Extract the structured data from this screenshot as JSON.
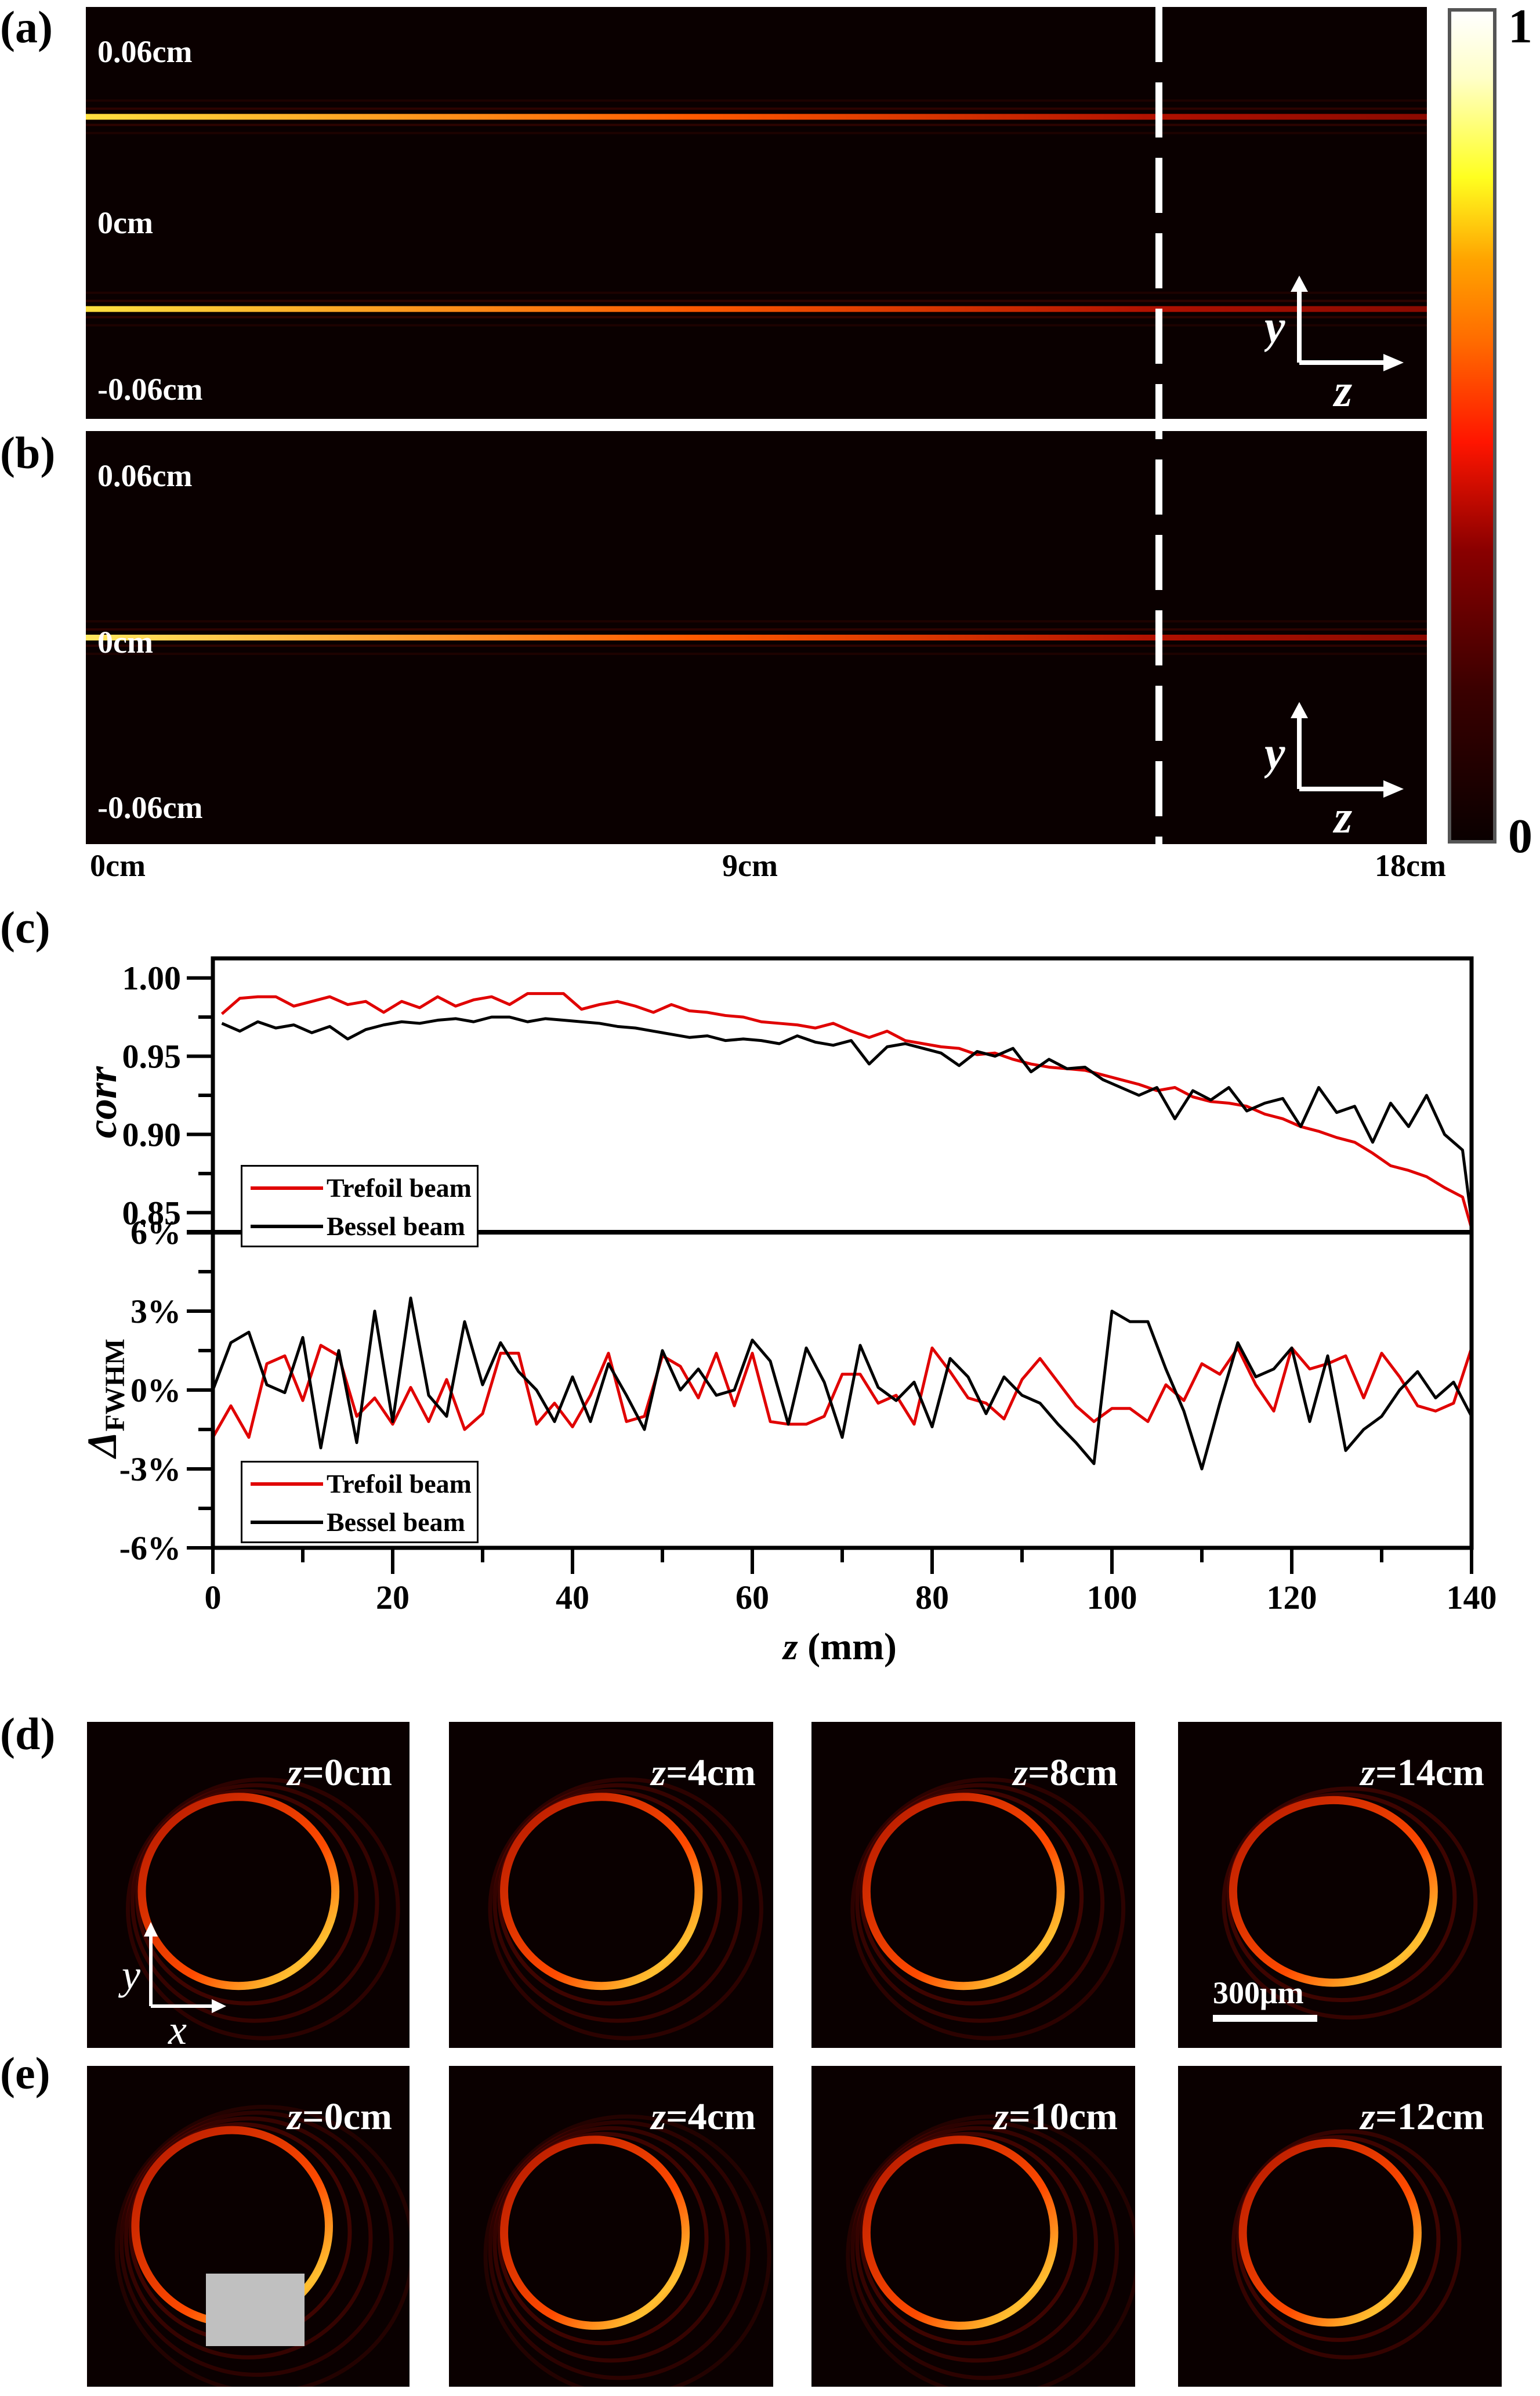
{
  "panel_labels": {
    "a": "(a)",
    "b": "(b)",
    "c": "(c)",
    "d": "(d)",
    "e": "(e)"
  },
  "heatmaps": {
    "y_ticks": [
      "0.06cm",
      "0cm",
      "-0.06cm"
    ],
    "x_ticks": [
      "0cm",
      "9cm",
      "18cm"
    ],
    "axis_y": "y",
    "axis_z": "z",
    "dashed_marker_z_cm": 14.4,
    "a": {
      "description": "Trefoil beam y-z intensity",
      "lobes_y_cm": [
        0.035,
        -0.035
      ]
    },
    "b": {
      "description": "Bessel beam y-z intensity",
      "lobes_y_cm": [
        0.0
      ]
    }
  },
  "colorbar": {
    "max_label": "1",
    "min_label": "0",
    "stops": [
      "#0a0000",
      "#3a0000",
      "#8a0000",
      "#ff1500",
      "#ff6a00",
      "#ffa300",
      "#ffff20",
      "#ffffc8",
      "#ffffff"
    ]
  },
  "colors": {
    "trefoil": "#e00000",
    "bessel": "#000000",
    "heat_bg": "#0a0000"
  },
  "chart_data": [
    {
      "type": "line",
      "title": "",
      "xlabel": "z (mm)",
      "ylabel": "corr",
      "xlim": [
        0,
        140
      ],
      "ylim": [
        0.8375,
        1.0125
      ],
      "yticks": [
        0.85,
        0.9,
        0.95,
        1.0
      ],
      "ytick_labels": [
        "0.85",
        "0.90",
        "0.95",
        "1.00"
      ],
      "grid": false,
      "legend": "bottom-left",
      "x": [
        1,
        3,
        5,
        7,
        9,
        11,
        13,
        15,
        17,
        19,
        21,
        23,
        25,
        27,
        29,
        31,
        33,
        35,
        37,
        39,
        41,
        43,
        45,
        47,
        49,
        51,
        53,
        55,
        57,
        59,
        61,
        63,
        65,
        67,
        69,
        71,
        73,
        75,
        77,
        79,
        81,
        83,
        85,
        87,
        89,
        91,
        93,
        95,
        97,
        99,
        101,
        103,
        105,
        107,
        109,
        111,
        113,
        115,
        117,
        119,
        121,
        123,
        125,
        127,
        129,
        131,
        133,
        135,
        137,
        139,
        140
      ],
      "series": [
        {
          "name": "Trefoil beam",
          "values": [
            0.977,
            0.987,
            0.988,
            0.988,
            0.982,
            0.985,
            0.988,
            0.983,
            0.985,
            0.978,
            0.985,
            0.981,
            0.988,
            0.982,
            0.986,
            0.988,
            0.983,
            0.99,
            0.99,
            0.99,
            0.98,
            0.983,
            0.985,
            0.982,
            0.978,
            0.983,
            0.979,
            0.978,
            0.976,
            0.975,
            0.972,
            0.971,
            0.97,
            0.968,
            0.971,
            0.966,
            0.962,
            0.966,
            0.96,
            0.958,
            0.956,
            0.955,
            0.951,
            0.952,
            0.948,
            0.945,
            0.943,
            0.942,
            0.941,
            0.938,
            0.935,
            0.932,
            0.928,
            0.93,
            0.924,
            0.921,
            0.92,
            0.918,
            0.913,
            0.91,
            0.905,
            0.902,
            0.898,
            0.895,
            0.888,
            0.88,
            0.877,
            0.873,
            0.866,
            0.86,
            0.84
          ]
        },
        {
          "name": "Bessel beam",
          "values": [
            0.971,
            0.966,
            0.972,
            0.968,
            0.97,
            0.965,
            0.969,
            0.961,
            0.967,
            0.97,
            0.972,
            0.971,
            0.973,
            0.974,
            0.972,
            0.975,
            0.975,
            0.972,
            0.974,
            0.973,
            0.972,
            0.971,
            0.969,
            0.968,
            0.966,
            0.964,
            0.962,
            0.963,
            0.96,
            0.961,
            0.96,
            0.958,
            0.963,
            0.959,
            0.957,
            0.96,
            0.945,
            0.956,
            0.958,
            0.955,
            0.952,
            0.944,
            0.953,
            0.95,
            0.955,
            0.94,
            0.948,
            0.942,
            0.943,
            0.935,
            0.93,
            0.925,
            0.93,
            0.91,
            0.928,
            0.922,
            0.93,
            0.915,
            0.92,
            0.923,
            0.905,
            0.93,
            0.914,
            0.918,
            0.895,
            0.92,
            0.905,
            0.925,
            0.9,
            0.89,
            0.845
          ]
        }
      ]
    },
    {
      "type": "line",
      "title": "",
      "xlabel": "z (mm)",
      "ylabel": "ΔFWHM",
      "xlim": [
        0,
        140
      ],
      "xticks": [
        0,
        20,
        40,
        60,
        80,
        100,
        120,
        140
      ],
      "xtick_labels": [
        "0",
        "20",
        "40",
        "60",
        "80",
        "100",
        "120",
        "140"
      ],
      "ylim": [
        -6,
        6
      ],
      "yticks": [
        -6,
        -3,
        0,
        3,
        6
      ],
      "ytick_labels": [
        "-6%",
        "-3%",
        "0%",
        "3%",
        "6%"
      ],
      "grid": false,
      "legend": "bottom-left",
      "x": [
        0,
        2,
        4,
        6,
        8,
        10,
        12,
        14,
        16,
        18,
        20,
        22,
        24,
        26,
        28,
        30,
        32,
        34,
        36,
        38,
        40,
        42,
        44,
        46,
        48,
        50,
        52,
        54,
        56,
        58,
        60,
        62,
        64,
        66,
        68,
        70,
        72,
        74,
        76,
        78,
        80,
        82,
        84,
        86,
        88,
        90,
        92,
        94,
        96,
        98,
        100,
        102,
        104,
        106,
        108,
        110,
        112,
        114,
        116,
        118,
        120,
        122,
        124,
        126,
        128,
        130,
        132,
        134,
        136,
        138,
        140
      ],
      "series": [
        {
          "name": "Trefoil beam",
          "values": [
            -1.8,
            -0.6,
            -1.8,
            1.0,
            1.3,
            -0.4,
            1.7,
            1.3,
            -1.0,
            -0.3,
            -1.3,
            0.1,
            -1.2,
            0.4,
            -1.5,
            -0.9,
            1.4,
            1.4,
            -1.3,
            -0.5,
            -1.4,
            -0.2,
            1.4,
            -1.2,
            -1.0,
            1.3,
            0.9,
            -0.3,
            1.4,
            -0.6,
            1.4,
            -1.2,
            -1.3,
            -1.3,
            -1.0,
            0.6,
            0.6,
            -0.5,
            -0.2,
            -1.3,
            1.6,
            0.7,
            -0.3,
            -0.5,
            -1.1,
            0.4,
            1.2,
            0.3,
            -0.6,
            -1.2,
            -0.7,
            -0.7,
            -1.2,
            0.2,
            -0.4,
            1.0,
            0.6,
            1.6,
            0.2,
            -0.8,
            1.6,
            0.8,
            1.0,
            1.3,
            -0.3,
            1.4,
            0.5,
            -0.6,
            -0.8,
            -0.5,
            1.6
          ]
        },
        {
          "name": "Bessel beam",
          "values": [
            0.0,
            1.8,
            2.2,
            0.2,
            -0.1,
            2.0,
            -2.2,
            1.5,
            -2.0,
            3.0,
            -1.2,
            3.5,
            -0.2,
            -1.0,
            2.6,
            0.2,
            1.8,
            0.7,
            0.0,
            -1.2,
            0.5,
            -1.2,
            1.0,
            -0.2,
            -1.5,
            1.5,
            0.0,
            0.8,
            -0.2,
            0.0,
            1.9,
            1.1,
            -1.3,
            1.6,
            0.3,
            -1.8,
            1.7,
            0.1,
            -0.4,
            0.3,
            -1.4,
            1.2,
            0.5,
            -0.9,
            0.5,
            -0.2,
            -0.5,
            -1.3,
            -2.0,
            -2.8,
            3.0,
            2.6,
            2.6,
            0.8,
            -0.8,
            -3.0,
            -0.5,
            1.8,
            0.5,
            0.8,
            1.6,
            -1.2,
            1.3,
            -2.3,
            -1.5,
            -1.0,
            0.0,
            0.7,
            -0.3,
            0.3,
            -1.0
          ]
        }
      ]
    }
  ],
  "tiles": {
    "row_d": [
      {
        "z_prefix": "z",
        "z_value": "=0cm"
      },
      {
        "z_prefix": "z",
        "z_value": "=4cm"
      },
      {
        "z_prefix": "z",
        "z_value": "=8cm"
      },
      {
        "z_prefix": "z",
        "z_value": "=14cm"
      }
    ],
    "row_e": [
      {
        "z_prefix": "z",
        "z_value": "=0cm"
      },
      {
        "z_prefix": "z",
        "z_value": "=4cm"
      },
      {
        "z_prefix": "z",
        "z_value": "=10cm"
      },
      {
        "z_prefix": "z",
        "z_value": "=12cm"
      }
    ],
    "axis_x": "x",
    "axis_y": "y",
    "scale_bar": "300μm"
  }
}
